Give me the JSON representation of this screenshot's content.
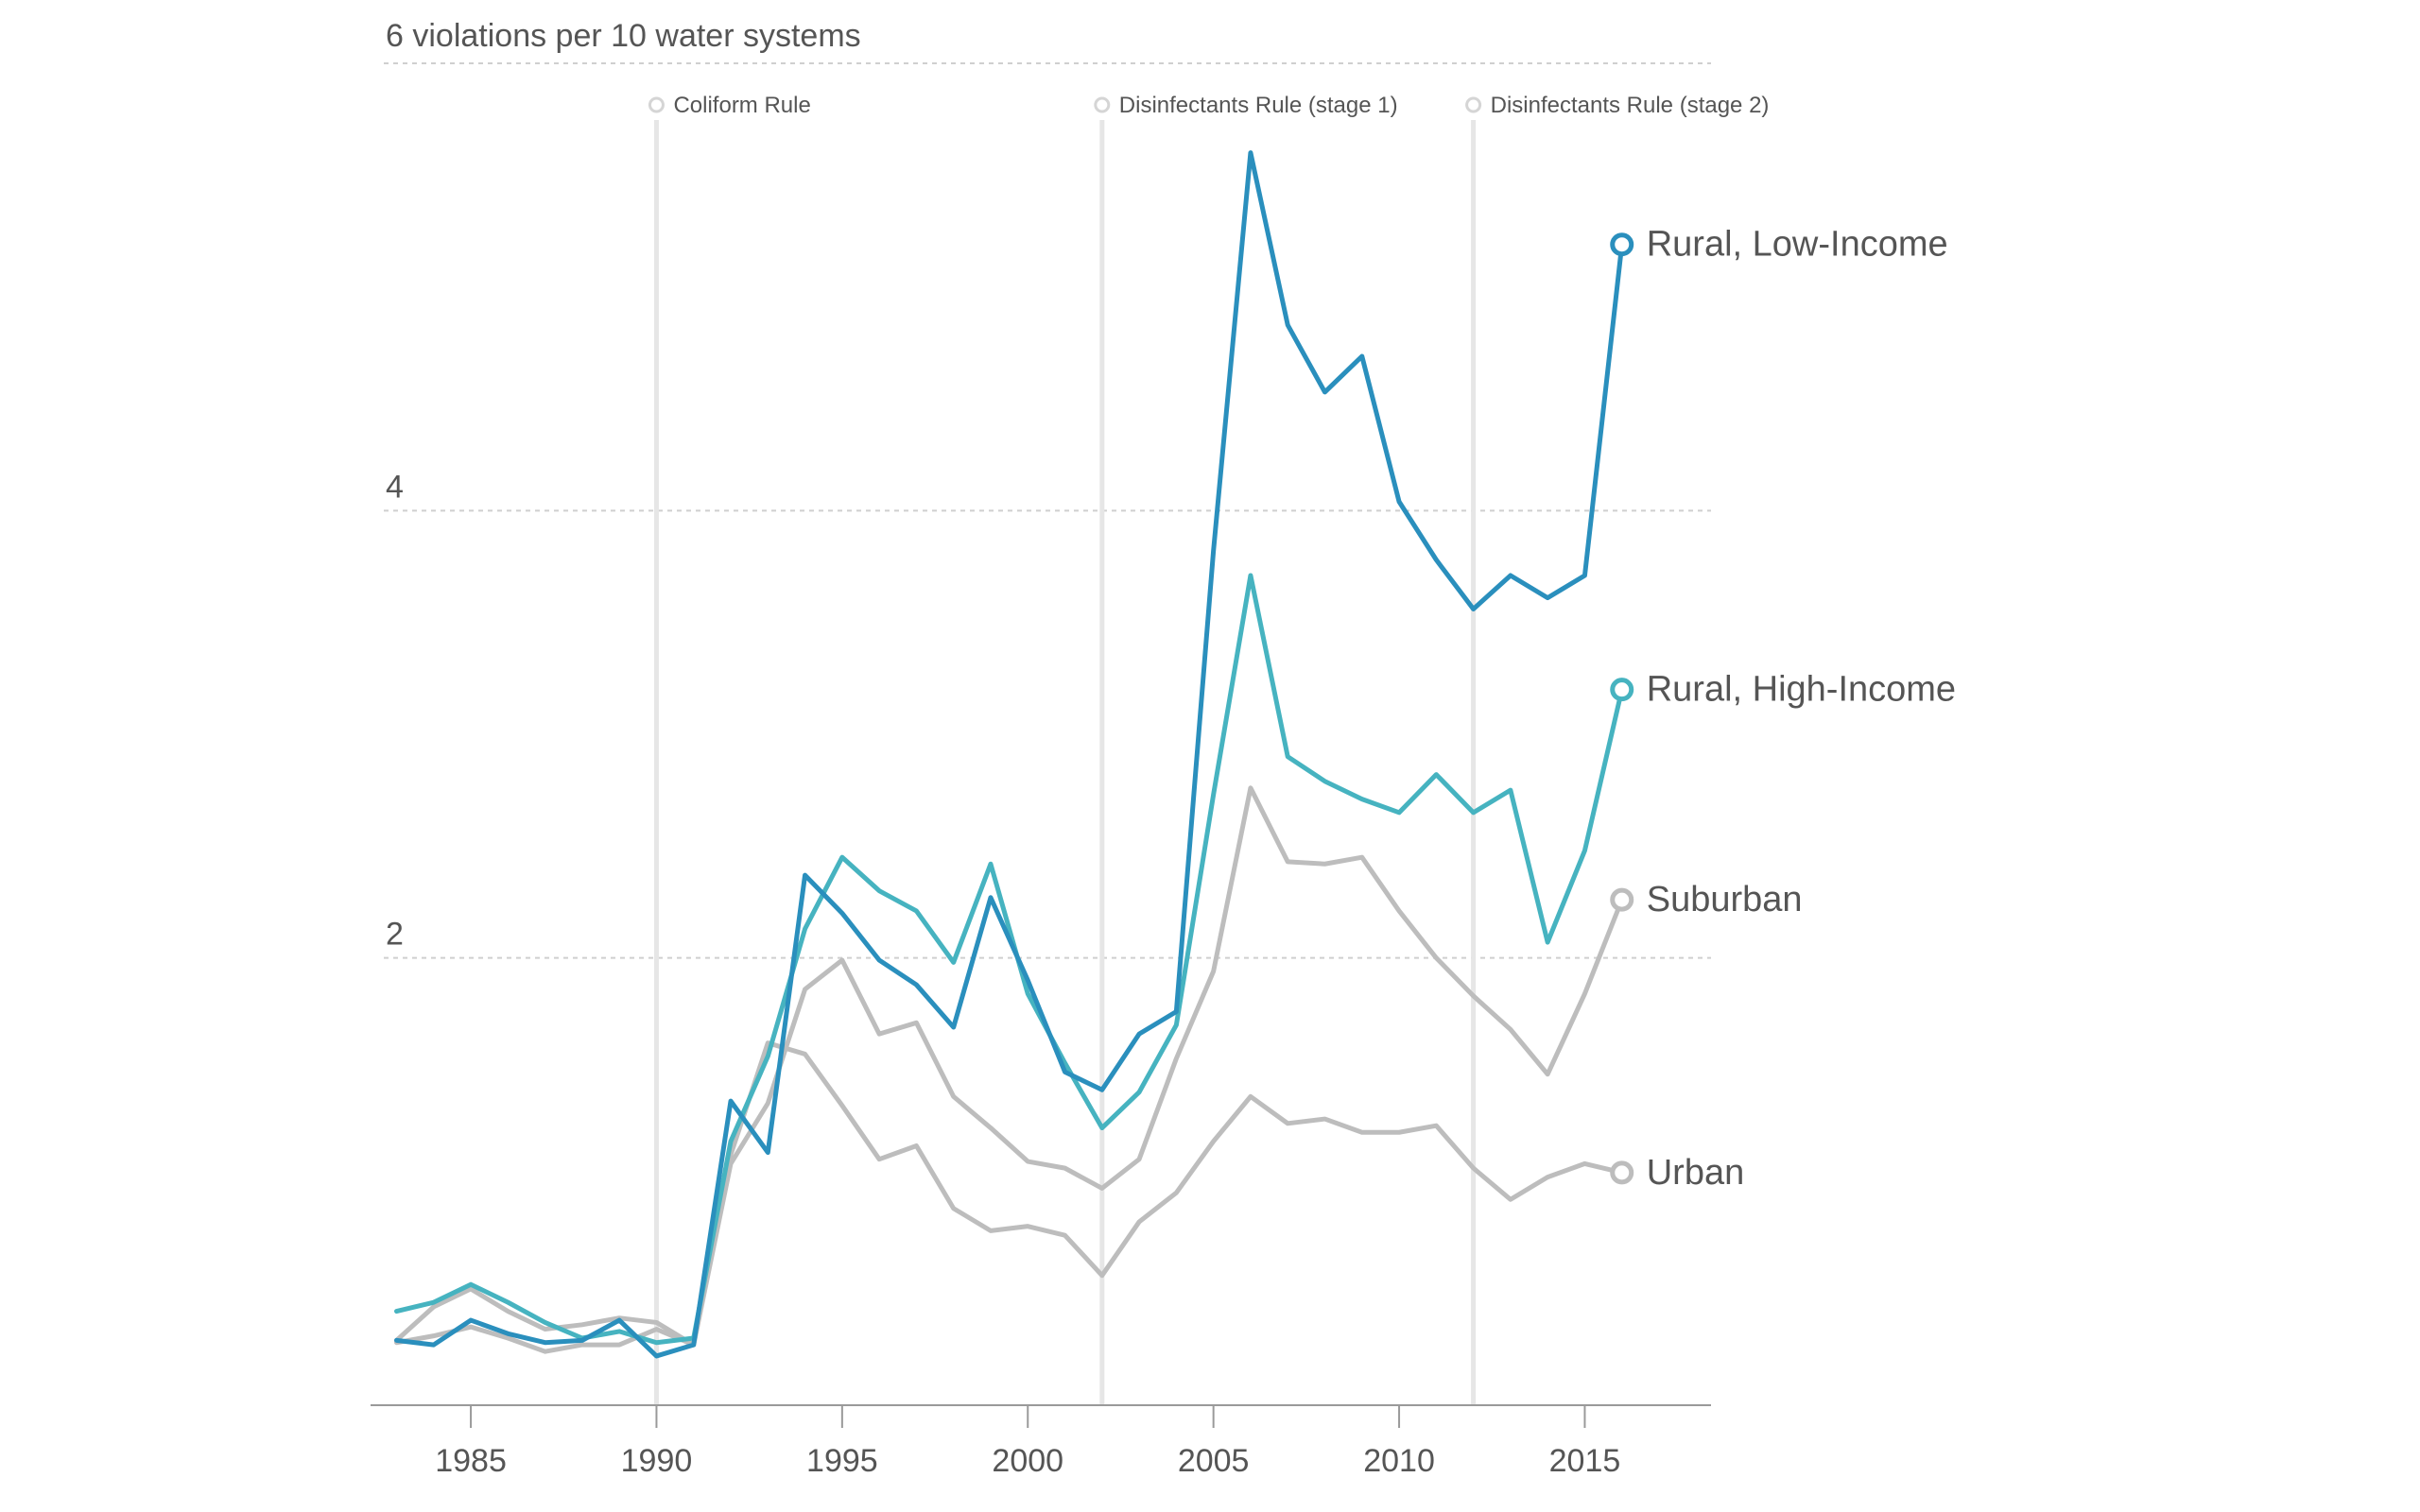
{
  "chart_data": {
    "type": "line",
    "y_top_label": "6 violations per 10 water systems",
    "ylim": [
      0,
      6
    ],
    "xlim": [
      1982.3,
      2018.4
    ],
    "y_gridlines": [
      2,
      4,
      6
    ],
    "y_tick_labels": [
      "2",
      "4"
    ],
    "x_ticks": [
      1985,
      1990,
      1995,
      2000,
      2005,
      2010,
      2015
    ],
    "x_tick_labels": [
      "1985",
      "1990",
      "1995",
      "2000",
      "2005",
      "2010",
      "2015"
    ],
    "events": [
      {
        "year": 1990,
        "label": "Coliform Rule"
      },
      {
        "year": 2002,
        "label": "Disinfectants Rule (stage 1)"
      },
      {
        "year": 2012,
        "label": "Disinfectants Rule (stage 2)"
      }
    ],
    "x": [
      1983,
      1984,
      1985,
      1986,
      1987,
      1988,
      1989,
      1990,
      1991,
      1992,
      1993,
      1994,
      1995,
      1996,
      1997,
      1998,
      1999,
      2000,
      2001,
      2002,
      2003,
      2004,
      2005,
      2006,
      2007,
      2008,
      2009,
      2010,
      2011,
      2012,
      2013,
      2014,
      2015,
      2016
    ],
    "series": [
      {
        "name": "Urban",
        "color": "#bdbdbd",
        "values": [
          0.28,
          0.31,
          0.35,
          0.3,
          0.24,
          0.27,
          0.27,
          0.34,
          0.27,
          1.12,
          1.62,
          1.57,
          1.34,
          1.1,
          1.16,
          0.88,
          0.78,
          0.8,
          0.76,
          0.58,
          0.82,
          0.95,
          1.18,
          1.38,
          1.26,
          1.28,
          1.22,
          1.22,
          1.25,
          1.06,
          0.92,
          1.02,
          1.08,
          1.04
        ]
      },
      {
        "name": "Suburban",
        "color": "#bdbdbd",
        "values": [
          0.29,
          0.44,
          0.52,
          0.42,
          0.34,
          0.36,
          0.39,
          0.37,
          0.27,
          1.08,
          1.35,
          1.86,
          1.99,
          1.66,
          1.71,
          1.38,
          1.24,
          1.09,
          1.06,
          0.97,
          1.1,
          1.55,
          1.94,
          2.76,
          2.43,
          2.42,
          2.45,
          2.21,
          2.0,
          1.83,
          1.68,
          1.48,
          1.84,
          2.26
        ]
      },
      {
        "name": "Rural, High-Income",
        "color": "#46b3c0",
        "values": [
          0.42,
          0.46,
          0.54,
          0.46,
          0.37,
          0.3,
          0.33,
          0.28,
          0.3,
          1.18,
          1.56,
          2.13,
          2.45,
          2.3,
          2.21,
          1.98,
          2.42,
          1.84,
          1.53,
          1.24,
          1.4,
          1.7,
          2.73,
          3.71,
          2.9,
          2.79,
          2.71,
          2.65,
          2.82,
          2.65,
          2.75,
          2.07,
          2.48,
          3.2
        ]
      },
      {
        "name": "Rural, Low-Income",
        "color": "#2a8fbd",
        "values": [
          0.29,
          0.27,
          0.38,
          0.32,
          0.28,
          0.29,
          0.38,
          0.22,
          0.27,
          1.36,
          1.13,
          2.37,
          2.2,
          1.99,
          1.88,
          1.69,
          2.27,
          1.9,
          1.49,
          1.41,
          1.66,
          1.76,
          3.82,
          5.6,
          4.83,
          4.53,
          4.69,
          4.04,
          3.78,
          3.56,
          3.71,
          3.61,
          3.71,
          5.19
        ]
      }
    ]
  }
}
